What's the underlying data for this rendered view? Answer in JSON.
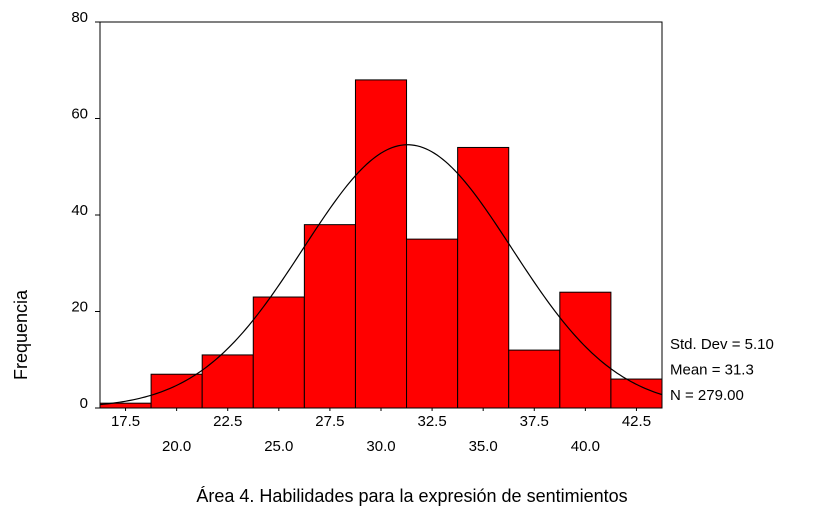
{
  "chart_data": {
    "type": "histogram",
    "title": "Área 4. Habilidades para la expresión de sentimientos",
    "y_label": "Frequencia",
    "bins": [
      16.25,
      18.75,
      21.25,
      23.75,
      26.25,
      28.75,
      31.25,
      33.75,
      36.25,
      38.75,
      41.25,
      43.75
    ],
    "values": [
      1,
      7,
      11,
      23,
      38,
      68,
      35,
      54,
      12,
      24,
      6
    ],
    "color": "#ff0000",
    "xlim": [
      16.25,
      43.75
    ],
    "xticks": [
      17.5,
      {
        "value": 20,
        "label": "20.0"
      },
      22.5,
      {
        "value": 25,
        "label": "25.0"
      },
      27.5,
      {
        "value": 30,
        "label": "30.0"
      },
      32.5,
      {
        "value": 35,
        "label": "35.0"
      },
      37.5,
      {
        "value": 40,
        "label": "40.0"
      },
      42.5
    ],
    "ylim": [
      0,
      80
    ],
    "yticks": [
      0,
      20,
      40,
      60,
      80
    ],
    "fit": {
      "mean": 31.3,
      "std_dev": 5.1,
      "n": 279
    },
    "stats_labels": [
      "Std. Dev = 5.10",
      "Mean = 31.3",
      "N = 279.00"
    ]
  }
}
